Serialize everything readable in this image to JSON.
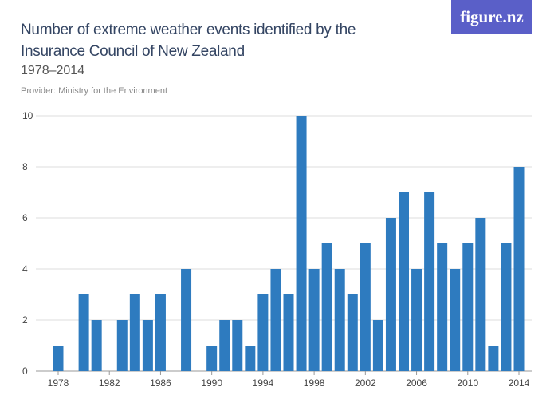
{
  "logo": "figure.nz",
  "chart_data": {
    "type": "bar",
    "title": "Number of extreme weather events identified by the Insurance Council of New Zealand",
    "subtitle": "1978–2014",
    "provider": "Provider: Ministry for the Environment",
    "x": [
      1978,
      1979,
      1980,
      1981,
      1982,
      1983,
      1984,
      1985,
      1986,
      1987,
      1988,
      1989,
      1990,
      1991,
      1992,
      1993,
      1994,
      1995,
      1996,
      1997,
      1998,
      1999,
      2000,
      2001,
      2002,
      2003,
      2004,
      2005,
      2006,
      2007,
      2008,
      2009,
      2010,
      2011,
      2012,
      2013,
      2014
    ],
    "values": [
      1,
      0,
      3,
      2,
      0,
      2,
      3,
      2,
      3,
      0,
      4,
      0,
      1,
      2,
      2,
      1,
      3,
      4,
      3,
      10,
      4,
      5,
      4,
      3,
      5,
      2,
      6,
      7,
      4,
      7,
      5,
      4,
      5,
      6,
      1,
      5,
      8
    ],
    "x_ticks": [
      "1978",
      "1982",
      "1986",
      "1990",
      "1994",
      "1998",
      "2002",
      "2006",
      "2010",
      "2014"
    ],
    "y_ticks": [
      "0",
      "2",
      "4",
      "6",
      "8",
      "10"
    ],
    "ylim": [
      0,
      10
    ],
    "grid": true,
    "color": "#2e7bbf"
  }
}
